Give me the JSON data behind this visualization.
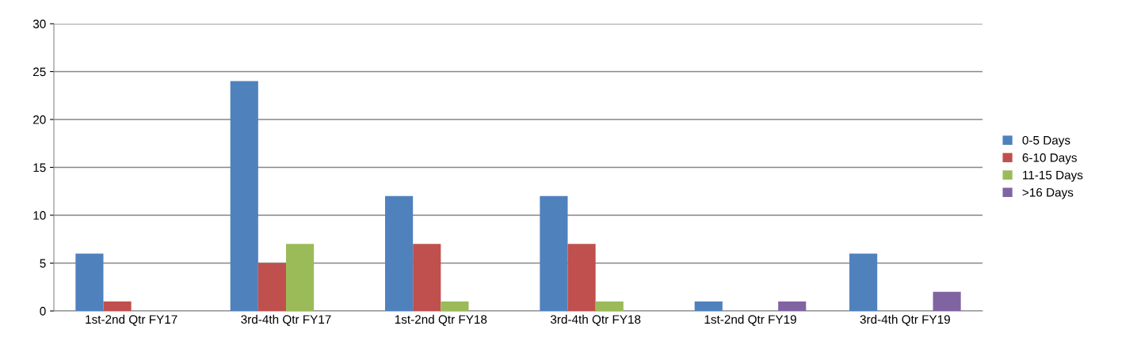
{
  "chart_data": {
    "type": "bar",
    "categories": [
      "1st-2nd Qtr FY17",
      "3rd-4th Qtr FY17",
      "1st-2nd Qtr FY18",
      "3rd-4th Qtr FY18",
      "1st-2nd Qtr FY19",
      "3rd-4th Qtr FY19"
    ],
    "series": [
      {
        "name": "0-5 Days",
        "color": "#4f81bd",
        "values": [
          6,
          24,
          12,
          12,
          1,
          6
        ]
      },
      {
        "name": "6-10 Days",
        "color": "#c0504d",
        "values": [
          1,
          5,
          7,
          7,
          0,
          0
        ]
      },
      {
        "name": "11-15 Days",
        "color": "#9bbb59",
        "values": [
          0,
          7,
          1,
          1,
          0,
          0
        ]
      },
      {
        "name": ">16 Days",
        "color": "#8064a2",
        "values": [
          0,
          0,
          0,
          0,
          1,
          2
        ]
      }
    ],
    "ylim": [
      0,
      30
    ],
    "yticks": [
      0,
      5,
      10,
      15,
      20,
      25,
      30
    ],
    "grid": "y",
    "legend": "right"
  }
}
